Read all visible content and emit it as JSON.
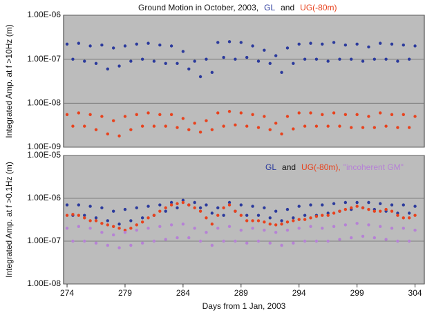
{
  "chart_data": [
    {
      "type": "scatter",
      "title": "Ground Motion in October, 2003,",
      "legend_separator": "and",
      "ylabel": "Integrated Amp. at f >10Hz (m)",
      "log_scale": "y",
      "grid": true,
      "xlim": [
        273.7,
        304.8
      ],
      "ylim": [
        1e-09,
        1e-06
      ],
      "yticks": [
        {
          "value": 1e-09,
          "label": "1.00E-09"
        },
        {
          "value": 1e-08,
          "label": "1.00E-08"
        },
        {
          "value": 1e-07,
          "label": "1.00E-07"
        },
        {
          "value": 1e-06,
          "label": "1.00E-06"
        }
      ],
      "x": [
        274,
        274.5,
        275,
        275.5,
        276,
        276.5,
        277,
        277.5,
        278,
        278.5,
        279,
        279.5,
        280,
        280.5,
        281,
        281.5,
        282,
        282.5,
        283,
        283.5,
        284,
        284.5,
        285,
        285.5,
        286,
        286.5,
        287,
        287.5,
        288,
        288.5,
        289,
        289.5,
        290,
        290.5,
        291,
        291.5,
        292,
        292.5,
        293,
        293.5,
        294,
        294.5,
        295,
        295.5,
        296,
        296.5,
        297,
        297.5,
        298,
        298.5,
        299,
        299.5,
        300,
        300.5,
        301,
        301.5,
        302,
        302.5,
        303,
        303.5,
        304
      ],
      "series": [
        {
          "name": "GL",
          "color": "#2b3a9c",
          "values": [
            2.2e-07,
            1e-07,
            2.3e-07,
            9e-08,
            2e-07,
            8e-08,
            2.1e-07,
            6e-08,
            1.8e-07,
            7e-08,
            2e-07,
            9e-08,
            2.2e-07,
            1e-07,
            2.3e-07,
            9e-08,
            2.1e-07,
            8e-08,
            2e-07,
            8e-08,
            1.5e-07,
            6e-08,
            9e-08,
            4e-08,
            1e-07,
            5e-08,
            2.4e-07,
            1.1e-07,
            2.5e-07,
            1e-07,
            2.4e-07,
            1.1e-07,
            2e-07,
            9e-08,
            1.6e-07,
            8e-08,
            1.2e-07,
            5e-08,
            1.8e-07,
            8e-08,
            2.2e-07,
            1e-07,
            2.3e-07,
            1e-07,
            2.2e-07,
            9e-08,
            2.4e-07,
            1e-07,
            2.1e-07,
            1e-07,
            2.2e-07,
            9e-08,
            1.9e-07,
            1e-07,
            2.3e-07,
            1e-07,
            2.2e-07,
            9e-08,
            2.1e-07,
            1e-07,
            2e-07
          ]
        },
        {
          "name": "UG(-80m)",
          "color": "#e8421d",
          "values": [
            5.5e-09,
            3e-09,
            6e-09,
            3e-09,
            5.5e-09,
            2.5e-09,
            5e-09,
            2e-09,
            4e-09,
            1.8e-09,
            5e-09,
            2.5e-09,
            5.5e-09,
            3e-09,
            6e-09,
            3e-09,
            5.5e-09,
            3e-09,
            5.5e-09,
            2.8e-09,
            4.5e-09,
            2.5e-09,
            3.5e-09,
            2.2e-09,
            4e-09,
            2.5e-09,
            6e-09,
            3e-09,
            6.5e-09,
            3.2e-09,
            6e-09,
            3e-09,
            5.5e-09,
            2.8e-09,
            5e-09,
            2.5e-09,
            3.5e-09,
            2e-09,
            5e-09,
            2.6e-09,
            6e-09,
            3e-09,
            6e-09,
            3e-09,
            5.5e-09,
            3e-09,
            6e-09,
            3e-09,
            5.5e-09,
            2.8e-09,
            5.5e-09,
            2.8e-09,
            5e-09,
            2.8e-09,
            6e-09,
            3e-09,
            5.5e-09,
            2.8e-09,
            5.5e-09,
            2.8e-09,
            5e-09
          ]
        }
      ]
    },
    {
      "type": "scatter",
      "legend_separator": "and",
      "ylabel": "Integrated Amp. at f >0.1Hz (m)",
      "xlabel": "Days from 1 Jan, 2003",
      "log_scale": "y",
      "grid": true,
      "xlim": [
        273.7,
        304.8
      ],
      "ylim": [
        1e-08,
        1e-05
      ],
      "xticks": [
        274,
        279,
        284,
        289,
        294,
        299,
        304
      ],
      "yticks": [
        {
          "value": 1e-08,
          "label": "1.00E-08"
        },
        {
          "value": 1e-07,
          "label": "1.00E-07"
        },
        {
          "value": 1e-06,
          "label": "1.00E-06"
        },
        {
          "value": 1e-05,
          "label": "1.00E-05"
        }
      ],
      "x": [
        274,
        274.5,
        275,
        275.5,
        276,
        276.5,
        277,
        277.5,
        278,
        278.5,
        279,
        279.5,
        280,
        280.5,
        281,
        281.5,
        282,
        282.5,
        283,
        283.5,
        284,
        284.5,
        285,
        285.5,
        286,
        286.5,
        287,
        287.5,
        288,
        288.5,
        289,
        289.5,
        290,
        290.5,
        291,
        291.5,
        292,
        292.5,
        293,
        293.5,
        294,
        294.5,
        295,
        295.5,
        296,
        296.5,
        297,
        297.5,
        298,
        298.5,
        299,
        299.5,
        300,
        300.5,
        301,
        301.5,
        302,
        302.5,
        303,
        303.5,
        304
      ],
      "series": [
        {
          "name": "GL",
          "color": "#2b3a9c",
          "values": [
            7e-07,
            4e-07,
            7e-07,
            4e-07,
            6.5e-07,
            3.5e-07,
            6e-07,
            3e-07,
            5e-07,
            2.5e-07,
            5.5e-07,
            3e-07,
            6e-07,
            3.5e-07,
            6.5e-07,
            4e-07,
            7e-07,
            5e-07,
            8e-07,
            6e-07,
            9e-07,
            7e-07,
            8e-07,
            6e-07,
            7e-07,
            4.5e-07,
            6e-07,
            4e-07,
            8e-07,
            5e-07,
            7e-07,
            4e-07,
            6.5e-07,
            4e-07,
            6e-07,
            3.5e-07,
            5e-07,
            3e-07,
            5.5e-07,
            3.5e-07,
            6.5e-07,
            4e-07,
            7e-07,
            4e-07,
            7e-07,
            4.5e-07,
            7.5e-07,
            5e-07,
            8e-07,
            5.5e-07,
            8e-07,
            6e-07,
            8e-07,
            5.5e-07,
            7.5e-07,
            5e-07,
            7e-07,
            4.5e-07,
            7e-07,
            4.5e-07,
            6.5e-07
          ]
        },
        {
          "name": "UG(-80m),",
          "color": "#e8421d",
          "values": [
            4e-07,
            4.2e-07,
            4e-07,
            3.5e-07,
            3e-07,
            3e-07,
            2.6e-07,
            2.4e-07,
            2.2e-07,
            2e-07,
            1.8e-07,
            2e-07,
            2.4e-07,
            2.8e-07,
            3.5e-07,
            4e-07,
            5e-07,
            6e-07,
            7e-07,
            7.5e-07,
            8e-07,
            7e-07,
            6e-07,
            5e-07,
            3.5e-07,
            2.5e-07,
            4e-07,
            6e-07,
            7e-07,
            5e-07,
            4e-07,
            3e-07,
            3e-07,
            3e-07,
            2.8e-07,
            2.5e-07,
            2.4e-07,
            2.5e-07,
            2.8e-07,
            3e-07,
            3.2e-07,
            3.2e-07,
            3.5e-07,
            3.8e-07,
            4e-07,
            4e-07,
            4.5e-07,
            5e-07,
            5.5e-07,
            6e-07,
            6.5e-07,
            6e-07,
            5.5e-07,
            5e-07,
            5e-07,
            5.5e-07,
            5e-07,
            4e-07,
            3.5e-07,
            3.5e-07,
            4e-07
          ]
        },
        {
          "name": "\"incoherent GM\"",
          "color": "#b681d6",
          "values": [
            2e-07,
            1e-07,
            2.2e-07,
            1e-07,
            2e-07,
            9e-08,
            1.6e-07,
            8e-08,
            1.4e-07,
            7e-08,
            1.6e-07,
            8e-08,
            1.8e-07,
            9e-08,
            2e-07,
            1e-07,
            2.2e-07,
            1.1e-07,
            2.4e-07,
            1.2e-07,
            2.5e-07,
            1.2e-07,
            2e-07,
            1e-07,
            1.6e-07,
            8e-08,
            2e-07,
            1e-07,
            2.2e-07,
            1e-07,
            1.8e-07,
            9e-08,
            2e-07,
            1e-07,
            1.8e-07,
            9e-08,
            1.6e-07,
            8e-08,
            1.8e-07,
            9e-08,
            2e-07,
            1e-07,
            2.2e-07,
            1e-07,
            2e-07,
            1e-07,
            2.2e-07,
            1.1e-07,
            2.4e-07,
            1.2e-07,
            2.6e-07,
            1.3e-07,
            2.4e-07,
            1.2e-07,
            2.2e-07,
            1.1e-07,
            2e-07,
            1e-07,
            2e-07,
            1e-07,
            1.8e-07
          ]
        }
      ]
    }
  ]
}
